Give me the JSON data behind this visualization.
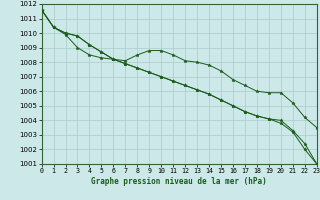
{
  "title": "Graphe pression niveau de la mer (hPa)",
  "bg_color": "#cce8e8",
  "grid_color": "#aacccc",
  "line_color": "#1a5c1a",
  "xlim": [
    0,
    23
  ],
  "ylim": [
    1001,
    1012
  ],
  "xticks": [
    0,
    1,
    2,
    3,
    4,
    5,
    6,
    7,
    8,
    9,
    10,
    11,
    12,
    13,
    14,
    15,
    16,
    17,
    18,
    19,
    20,
    21,
    22,
    23
  ],
  "yticks": [
    1001,
    1002,
    1003,
    1004,
    1005,
    1006,
    1007,
    1008,
    1009,
    1010,
    1011,
    1012
  ],
  "series": [
    [
      1011.6,
      1010.4,
      1009.9,
      1009.0,
      1008.5,
      1008.3,
      1008.2,
      1008.1,
      1008.5,
      1008.8,
      1008.8,
      1008.5,
      1008.1,
      1008.0,
      1007.8,
      1007.4,
      1006.8,
      1006.4,
      1006.0,
      1005.9,
      1005.9,
      1005.2,
      1004.2,
      1003.5
    ],
    [
      1011.6,
      1010.4,
      1010.0,
      1009.8,
      1009.2,
      1008.7,
      1008.2,
      1007.9,
      1007.6,
      1007.3,
      1007.0,
      1006.7,
      1006.4,
      1006.1,
      1005.8,
      1005.4,
      1005.0,
      1004.6,
      1004.3,
      1004.1,
      1004.0,
      1003.3,
      1002.4,
      1001.0
    ],
    [
      1011.6,
      1010.4,
      1010.0,
      1009.8,
      1009.2,
      1008.7,
      1008.2,
      1007.9,
      1007.6,
      1007.3,
      1007.0,
      1006.7,
      1006.4,
      1006.1,
      1005.8,
      1005.4,
      1005.0,
      1004.6,
      1004.3,
      1004.1,
      1003.8,
      1003.2,
      1002.0,
      1001.0
    ]
  ]
}
